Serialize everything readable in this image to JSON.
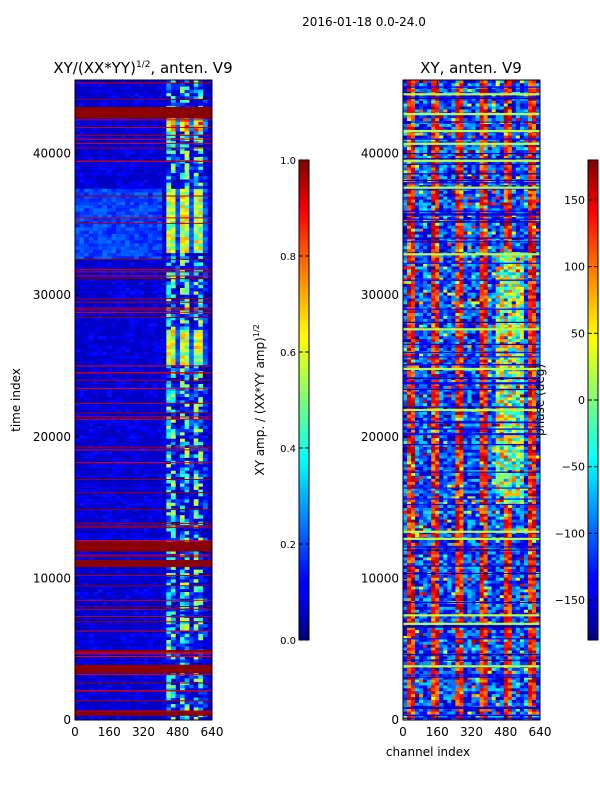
{
  "figure_title": "2016-01-18 0.0-24.0",
  "chart_data": [
    {
      "type": "heatmap",
      "title": "XY/(XX*YY)^{1/2}, anten. V9",
      "title_main": "XY/(XX*YY)",
      "title_sup": "1/2",
      "title_suffix": ", anten. V9",
      "xlabel": "",
      "ylabel": "time index",
      "xlim": [
        0,
        640
      ],
      "ylim": [
        0,
        45200
      ],
      "xticks": [
        0,
        160,
        320,
        480,
        640
      ],
      "yticks": [
        0,
        10000,
        20000,
        30000,
        40000
      ],
      "colormap": "jet",
      "colorbar": {
        "label": "XY amp. / (XX*YY amp)^{1/2}",
        "label_main": "XY amp. / (XX*YY amp)",
        "label_sup": "1/2",
        "range": [
          0.0,
          1.0
        ],
        "ticks": [
          "0.0",
          "0.2",
          "0.4",
          "0.6",
          "0.8",
          "1.0"
        ]
      },
      "background_value": 0.07,
      "full_width_bands": [
        {
          "y": [
            300,
            600
          ],
          "value": 1.0
        },
        {
          "y": [
            3300,
            3900
          ],
          "value": 1.0
        },
        {
          "y": [
            10800,
            11300
          ],
          "value": 1.0
        },
        {
          "y": [
            11900,
            12600
          ],
          "value": 1.0
        },
        {
          "y": [
            42500,
            43300
          ],
          "value": 1.0
        }
      ],
      "active_channel_block": {
        "x": [
          410,
          600
        ],
        "value": 0.45
      },
      "high_regions": [
        {
          "x": [
            420,
            600
          ],
          "y": [
            41500,
            42300
          ],
          "value": 0.75
        },
        {
          "x": [
            420,
            600
          ],
          "y": [
            32800,
            37500
          ],
          "value": 0.6
        },
        {
          "x": [
            420,
            600
          ],
          "y": [
            25000,
            27500
          ],
          "value": 0.6
        },
        {
          "x": [
            0,
            400
          ],
          "y": [
            32500,
            37500
          ],
          "value": 0.2
        }
      ]
    },
    {
      "type": "heatmap",
      "title": "XY, anten. V9",
      "xlabel": "channel index",
      "ylabel": "",
      "xlim": [
        0,
        640
      ],
      "ylim": [
        0,
        45200
      ],
      "xticks": [
        0,
        160,
        320,
        480,
        640
      ],
      "yticks": [
        0,
        10000,
        20000,
        30000,
        40000
      ],
      "colormap": "jet",
      "colorbar": {
        "label": "phase (deg)",
        "range": [
          -180,
          180
        ],
        "ticks": [
          "−150",
          "−100",
          "−50",
          "0",
          "50",
          "100",
          "150"
        ]
      },
      "pattern": "noisy phase with vertical stripes",
      "mid_phase_bands": [
        3800,
        6800,
        7400,
        12800,
        13300,
        21900,
        24800,
        27600,
        32900,
        37600,
        39500,
        40700,
        41600,
        42800,
        44200
      ]
    }
  ]
}
